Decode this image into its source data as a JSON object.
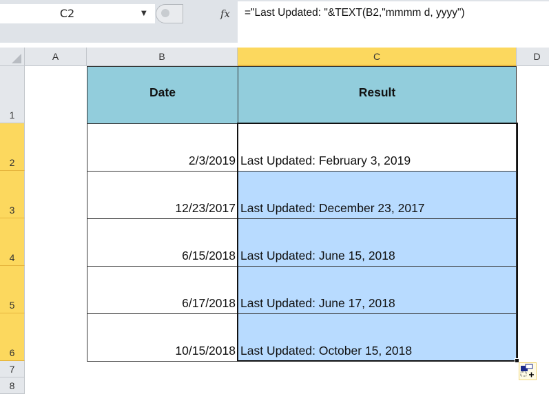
{
  "formula_bar": {
    "name_box": "C2",
    "fx_label": "fx",
    "formula": "=\"Last Updated: \"&TEXT(B2,\"mmmm d, yyyy\")"
  },
  "columns": [
    "A",
    "B",
    "C",
    "D"
  ],
  "rows": [
    "1",
    "2",
    "3",
    "4",
    "5",
    "6",
    "7",
    "8"
  ],
  "selected_cell": "C2",
  "colors": {
    "header_fill": "#92cddc",
    "selection_fill": "#b8dbff",
    "selected_header": "#fcd85e"
  },
  "table": {
    "headers": [
      "Date",
      "Result"
    ],
    "rows": [
      [
        "2/3/2019",
        "Last Updated: February 3, 2019"
      ],
      [
        "12/23/2017",
        "Last Updated: December 23, 2017"
      ],
      [
        "6/15/2018",
        "Last Updated: June 15, 2018"
      ],
      [
        "6/17/2018",
        "Last Updated: June 17, 2018"
      ],
      [
        "10/15/2018",
        "Last Updated: October 15, 2018"
      ]
    ]
  }
}
